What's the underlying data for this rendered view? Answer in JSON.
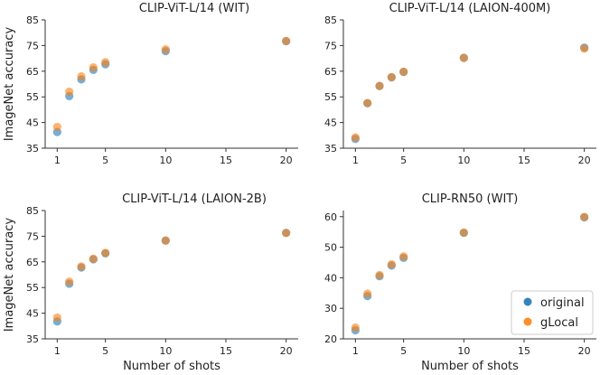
{
  "colors": {
    "original": "#1f77b4",
    "glocal": "#ff7f0e"
  },
  "legend": {
    "items": [
      "original",
      "gLocal"
    ],
    "placement": "bottom-right of CLIP-RN50 (WIT) panel"
  },
  "chart_data": [
    {
      "type": "scatter",
      "title": "CLIP-ViT-L/14 (WIT)",
      "xlabel": "",
      "ylabel": "ImageNet accuracy",
      "xlim": [
        0,
        21
      ],
      "ylim": [
        35,
        85
      ],
      "xticks": [
        1,
        5,
        10,
        15,
        20
      ],
      "yticks": [
        35,
        45,
        55,
        65,
        75,
        85
      ],
      "x": [
        1,
        2,
        3,
        4,
        5,
        10,
        20
      ],
      "series": [
        {
          "name": "original",
          "values": [
            41.3,
            55.3,
            61.8,
            65.5,
            67.7,
            72.8,
            76.7
          ]
        },
        {
          "name": "gLocal",
          "values": [
            43.3,
            57.0,
            63.0,
            66.5,
            68.5,
            73.5,
            76.8
          ]
        }
      ]
    },
    {
      "type": "scatter",
      "title": "CLIP-ViT-L/14 (LAION-400M)",
      "xlabel": "",
      "ylabel": "",
      "xlim": [
        0,
        21
      ],
      "ylim": [
        35,
        85
      ],
      "xticks": [
        1,
        5,
        10,
        15,
        20
      ],
      "yticks": [
        35,
        45,
        55,
        65,
        75,
        85
      ],
      "x": [
        1,
        2,
        3,
        4,
        5,
        10,
        20
      ],
      "series": [
        {
          "name": "original",
          "values": [
            38.6,
            52.5,
            59.2,
            62.6,
            64.7,
            70.2,
            74.2
          ]
        },
        {
          "name": "gLocal",
          "values": [
            39.2,
            52.6,
            59.3,
            62.7,
            64.8,
            70.2,
            73.8
          ]
        }
      ]
    },
    {
      "type": "scatter",
      "title": "CLIP-ViT-L/14 (LAION-2B)",
      "xlabel": "Number of shots",
      "ylabel": "ImageNet accuracy",
      "xlim": [
        0,
        21
      ],
      "ylim": [
        35,
        85
      ],
      "xticks": [
        1,
        5,
        10,
        15,
        20
      ],
      "yticks": [
        35,
        45,
        55,
        65,
        75,
        85
      ],
      "x": [
        1,
        2,
        3,
        4,
        5,
        10,
        20
      ],
      "series": [
        {
          "name": "original",
          "values": [
            41.8,
            56.5,
            62.8,
            66.0,
            68.3,
            73.3,
            76.3
          ]
        },
        {
          "name": "gLocal",
          "values": [
            43.3,
            57.3,
            63.2,
            66.2,
            68.5,
            73.3,
            76.3
          ]
        }
      ]
    },
    {
      "type": "scatter",
      "title": "CLIP-RN50 (WIT)",
      "xlabel": "Number of shots",
      "ylabel": "",
      "xlim": [
        0,
        21
      ],
      "ylim": [
        20,
        62
      ],
      "xticks": [
        1,
        5,
        10,
        15,
        20
      ],
      "yticks": [
        20,
        30,
        40,
        50,
        60
      ],
      "x": [
        1,
        2,
        3,
        4,
        5,
        10,
        20
      ],
      "series": [
        {
          "name": "original",
          "values": [
            22.8,
            34.0,
            40.5,
            44.0,
            46.5,
            54.7,
            59.8
          ]
        },
        {
          "name": "gLocal",
          "values": [
            23.7,
            34.8,
            40.9,
            44.4,
            47.0,
            54.8,
            59.9
          ]
        }
      ]
    }
  ]
}
